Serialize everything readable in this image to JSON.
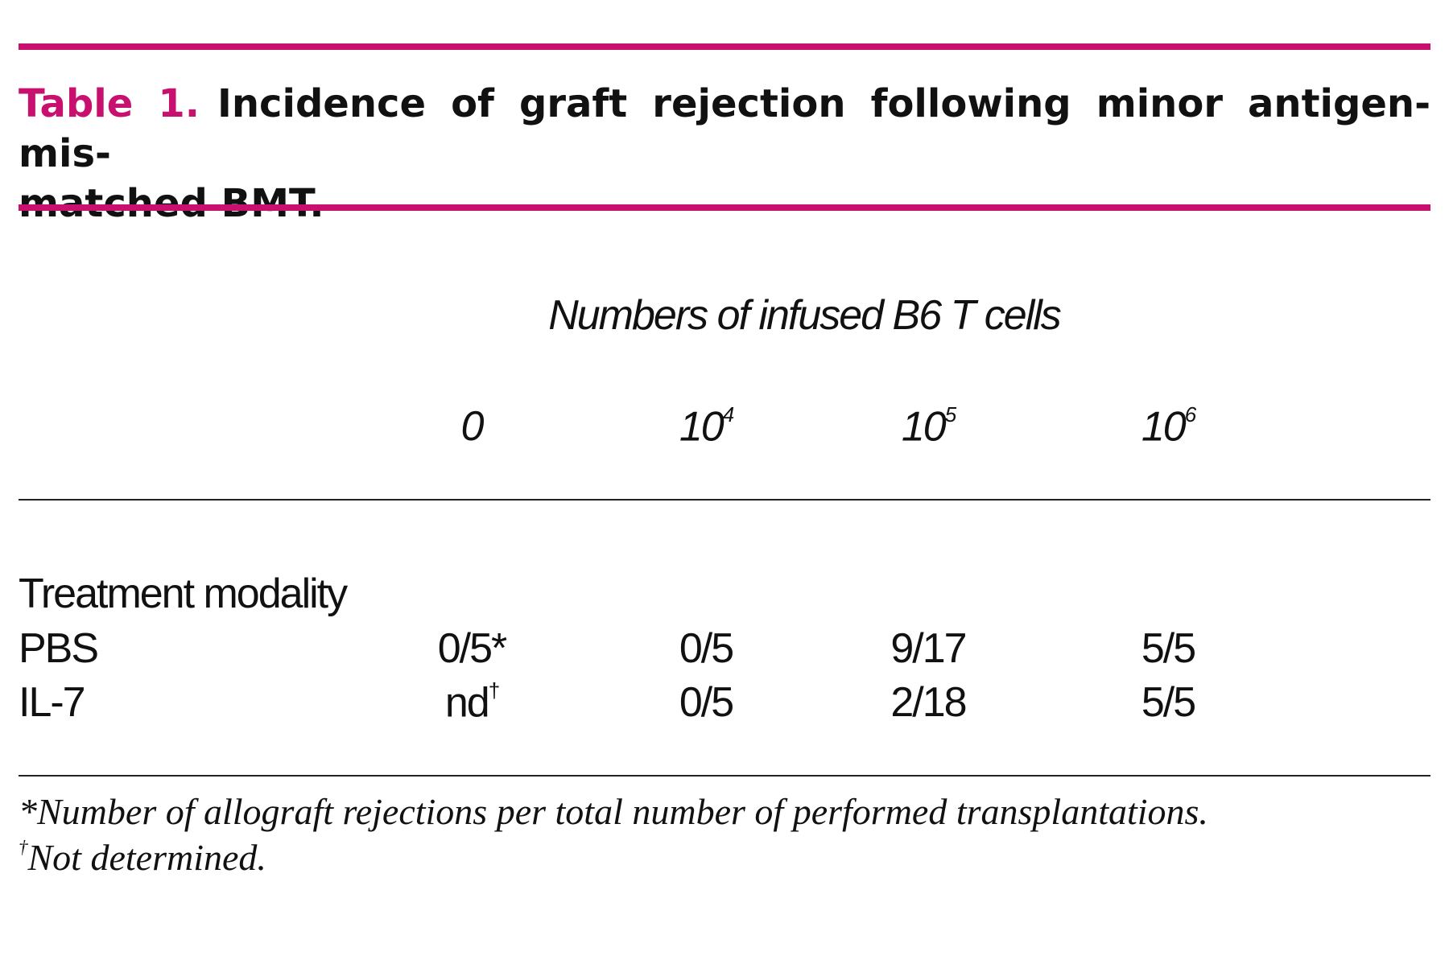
{
  "caption": {
    "label": "Table 1.",
    "lines": [
      "Incidence of graft rejection following minor antigen-mis-",
      "matched BMT."
    ]
  },
  "table": {
    "spanner": "Numbers of infused B6 T cells",
    "columns": [
      {
        "base": "0"
      },
      {
        "base": "10",
        "exp": "4"
      },
      {
        "base": "10",
        "exp": "5"
      },
      {
        "base": "10",
        "exp": "6"
      }
    ],
    "stub_heading": "Treatment modality",
    "rows": [
      {
        "label": "PBS",
        "cells": [
          {
            "text": "0/5*"
          },
          {
            "text": "0/5"
          },
          {
            "text": "9/17"
          },
          {
            "text": "5/5"
          }
        ]
      },
      {
        "label": "IL-7",
        "cells": [
          {
            "text": "nd",
            "mark": "†"
          },
          {
            "text": "0/5"
          },
          {
            "text": "2/18"
          },
          {
            "text": "5/5"
          }
        ]
      }
    ]
  },
  "footnotes": [
    {
      "text": "*Number of allograft rejections per total number of performed transplantations."
    },
    {
      "mark": "†",
      "text": "Not determined."
    }
  ]
}
